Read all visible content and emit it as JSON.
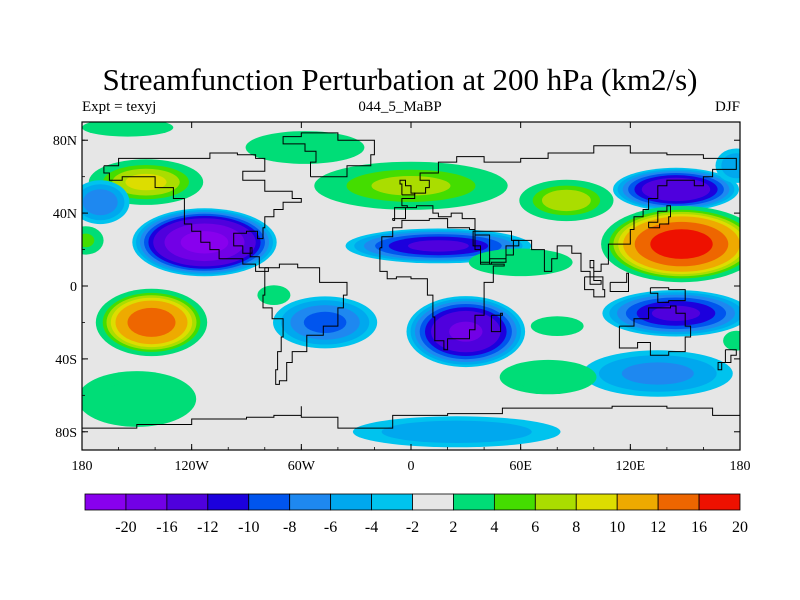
{
  "title": "Streamfunction Perturbation at 200 hPa (km2/s)",
  "left_label": "Expt = texyj",
  "center_label": "044_5_MaBP",
  "right_label": "DJF",
  "map": {
    "lon_range": [
      -180,
      180
    ],
    "lat_range": [
      -90,
      90
    ],
    "lon_ticks": [
      {
        "v": -180,
        "l": "180"
      },
      {
        "v": -120,
        "l": "120W"
      },
      {
        "v": -60,
        "l": "60W"
      },
      {
        "v": 0,
        "l": "0"
      },
      {
        "v": 60,
        "l": "60E"
      },
      {
        "v": 120,
        "l": "120E"
      },
      {
        "v": 180,
        "l": "180"
      }
    ],
    "lat_ticks": [
      {
        "v": 80,
        "l": "80N"
      },
      {
        "v": 40,
        "l": "40N"
      },
      {
        "v": 0,
        "l": "0"
      },
      {
        "v": -40,
        "l": "40S"
      },
      {
        "v": -80,
        "l": "80S"
      }
    ],
    "background_color": "#e6e6e6"
  },
  "colorbar": {
    "labels": [
      "-20",
      "-16",
      "-12",
      "-10",
      "-8",
      "-6",
      "-4",
      "-2",
      "2",
      "4",
      "6",
      "8",
      "10",
      "12",
      "16",
      "20"
    ],
    "colors": [
      "#8800ee",
      "#7200e6",
      "#4f00dd",
      "#1c00dd",
      "#0055ee",
      "#1e88f0",
      "#00a8ee",
      "#00c3ee",
      "#e6e6e6",
      "#00dd77",
      "#44dd00",
      "#aadd00",
      "#dddd00",
      "#eeaa00",
      "#ee6600",
      "#ee1100"
    ]
  },
  "features": [
    {
      "lon": -113,
      "lat": 24,
      "v": -21,
      "rx": 36,
      "ry": 17
    },
    {
      "lon": -145,
      "lat": 57,
      "v": 10,
      "rx": 30,
      "ry": 12
    },
    {
      "lon": -170,
      "lat": 46,
      "v": -7,
      "rx": 16,
      "ry": 12
    },
    {
      "lon": -178,
      "lat": 25,
      "v": 6,
      "rx": 10,
      "ry": 8
    },
    {
      "lon": -142,
      "lat": -20,
      "v": 18,
      "rx": 28,
      "ry": 17
    },
    {
      "lon": -150,
      "lat": -62,
      "v": 4,
      "rx": 36,
      "ry": 17
    },
    {
      "lon": -155,
      "lat": 87,
      "v": 3,
      "rx": 30,
      "ry": 6
    },
    {
      "lon": -58,
      "lat": 76,
      "v": 4,
      "rx": 36,
      "ry": 10
    },
    {
      "lon": 0,
      "lat": 55,
      "v": 8,
      "rx": 52,
      "ry": 13
    },
    {
      "lon": 15,
      "lat": 22,
      "v": -12,
      "rx": 48,
      "ry": 9
    },
    {
      "lon": 60,
      "lat": 13,
      "v": 5,
      "rx": 30,
      "ry": 8
    },
    {
      "lon": 85,
      "lat": 47,
      "v": 9,
      "rx": 25,
      "ry": 11
    },
    {
      "lon": 145,
      "lat": 53,
      "v": -15,
      "rx": 32,
      "ry": 11
    },
    {
      "lon": 178,
      "lat": 66,
      "v": -5,
      "rx": 12,
      "ry": 10
    },
    {
      "lon": 148,
      "lat": 23,
      "v": 22,
      "rx": 40,
      "ry": 19
    },
    {
      "lon": 145,
      "lat": -15,
      "v": -12,
      "rx": 38,
      "ry": 12
    },
    {
      "lon": 135,
      "lat": -48,
      "v": -6,
      "rx": 42,
      "ry": 13
    },
    {
      "lon": 178,
      "lat": -30,
      "v": 4,
      "rx": 8,
      "ry": 6
    },
    {
      "lon": 30,
      "lat": -25,
      "v": -16,
      "rx": 30,
      "ry": 18
    },
    {
      "lon": -47,
      "lat": -20,
      "v": -8,
      "rx": 28,
      "ry": 14
    },
    {
      "lon": 80,
      "lat": -22,
      "v": 4,
      "rx": 16,
      "ry": 6
    },
    {
      "lon": 75,
      "lat": -50,
      "v": 5,
      "rx": 28,
      "ry": 10
    },
    {
      "lon": 25,
      "lat": -80,
      "v": -5,
      "rx": 60,
      "ry": 9
    },
    {
      "lon": -75,
      "lat": -5,
      "v": 4,
      "rx": 10,
      "ry": 6
    }
  ]
}
